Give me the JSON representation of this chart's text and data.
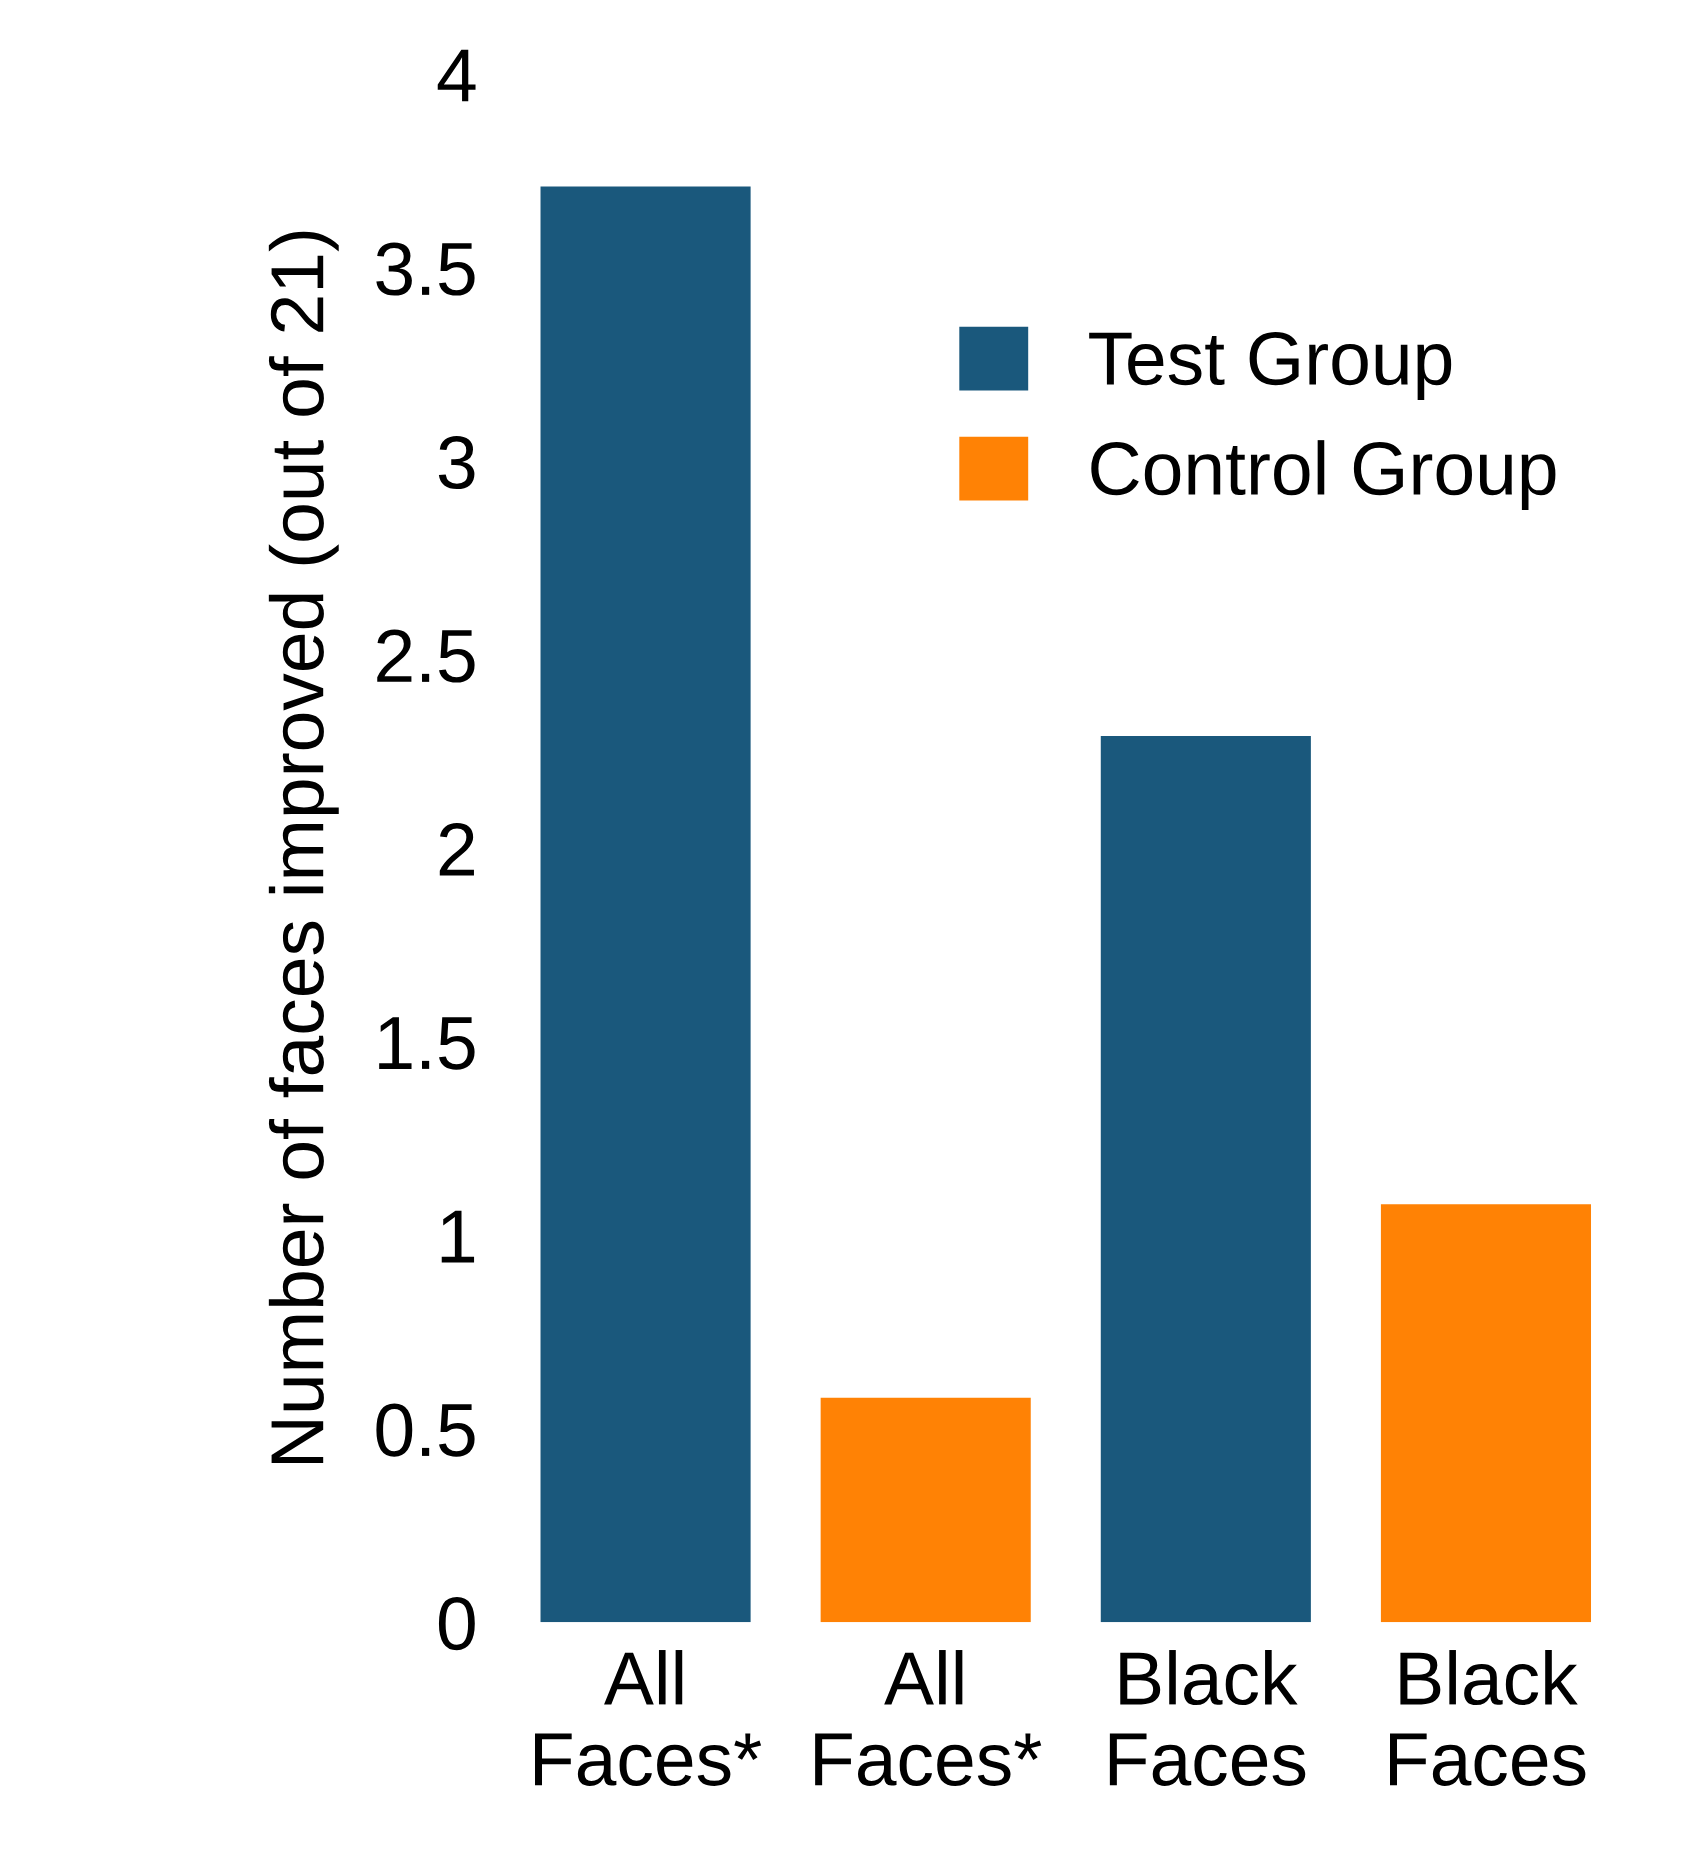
{
  "chart_data": {
    "type": "bar",
    "ylabel": "Number of faces improved (out of 21)",
    "categories": [
      "All\nFaces*",
      "All\nFaces*",
      "Black\nFaces",
      "Black\nFaces"
    ],
    "series": [
      {
        "name": "Test Group",
        "color": "#1a587c",
        "values": [
          3.71,
          null,
          2.29,
          null
        ]
      },
      {
        "name": "Control Group",
        "color": "#ff8205",
        "values": [
          null,
          0.58,
          null,
          1.08
        ]
      }
    ],
    "ylim": [
      0,
      4
    ],
    "yticks": [
      0,
      0.5,
      1,
      1.5,
      2,
      2.5,
      3,
      3.5,
      4
    ],
    "grid": false,
    "legend": "top right"
  }
}
